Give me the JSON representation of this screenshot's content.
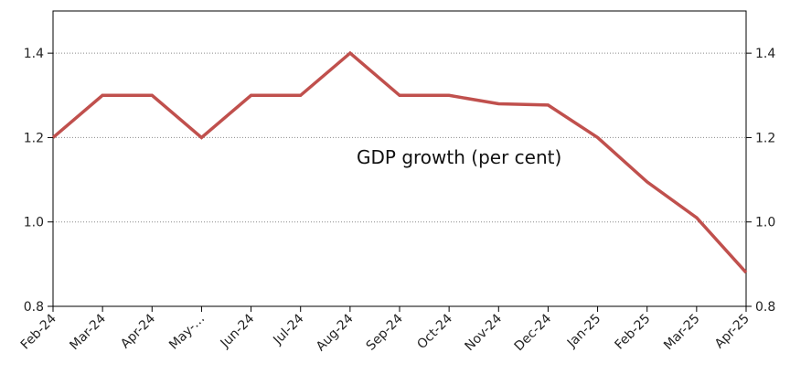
{
  "chart_data": {
    "type": "line",
    "title": "",
    "xlabel": "",
    "ylabel": "",
    "annotation": "GDP growth (per cent)",
    "categories": [
      "Feb-24",
      "Mar-24",
      "Apr-24",
      "May-…",
      "Jun-24",
      "Jul-24",
      "Aug-24",
      "Sep-24",
      "Oct-24",
      "Nov-24",
      "Dec-24",
      "Jan-25",
      "Feb-25",
      "Mar-25",
      "Apr-25"
    ],
    "series": [
      {
        "values": [
          1.2,
          1.3,
          1.3,
          1.2,
          1.3,
          1.3,
          1.4,
          1.3,
          1.3,
          1.28,
          1.277,
          1.2,
          1.095,
          1.01,
          0.88
        ],
        "color": "#c0504d"
      }
    ],
    "ylim": [
      0.8,
      1.5
    ],
    "yticks": [
      0.8,
      1.0,
      1.2,
      1.4
    ],
    "ytick_labels": [
      "0.8",
      "1.0",
      "1.2",
      "1.4"
    ],
    "secondary_y_axis": true,
    "grid": "horizontal-dotted",
    "legend": "none"
  }
}
